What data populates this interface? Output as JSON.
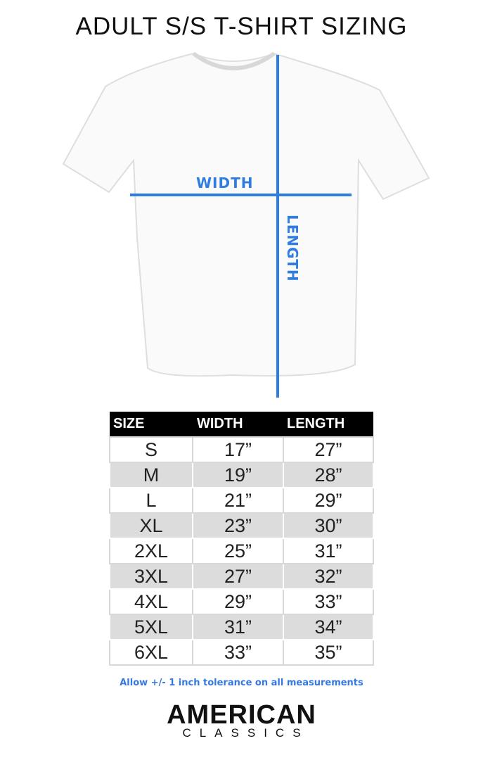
{
  "title": "ADULT S/S T-SHIRT SIZING",
  "diagram": {
    "width_label": "WIDTH",
    "length_label": "LENGTH",
    "accent_color": "#2f7de1"
  },
  "table": {
    "headers": [
      "SIZE",
      "WIDTH",
      "LENGTH"
    ],
    "rows": [
      [
        "S",
        "17”",
        "27”"
      ],
      [
        "M",
        "19”",
        "28”"
      ],
      [
        "L",
        "21”",
        "29”"
      ],
      [
        "XL",
        "23”",
        "30”"
      ],
      [
        "2XL",
        "25”",
        "31”"
      ],
      [
        "3XL",
        "27”",
        "32”"
      ],
      [
        "4XL",
        "29”",
        "33”"
      ],
      [
        "5XL",
        "31”",
        "34”"
      ],
      [
        "6XL",
        "33”",
        "35”"
      ]
    ]
  },
  "note": "Allow +/- 1 inch tolerance on all measurements",
  "brand": {
    "line1": "AMERICAN",
    "line2": "CLASSICS"
  }
}
